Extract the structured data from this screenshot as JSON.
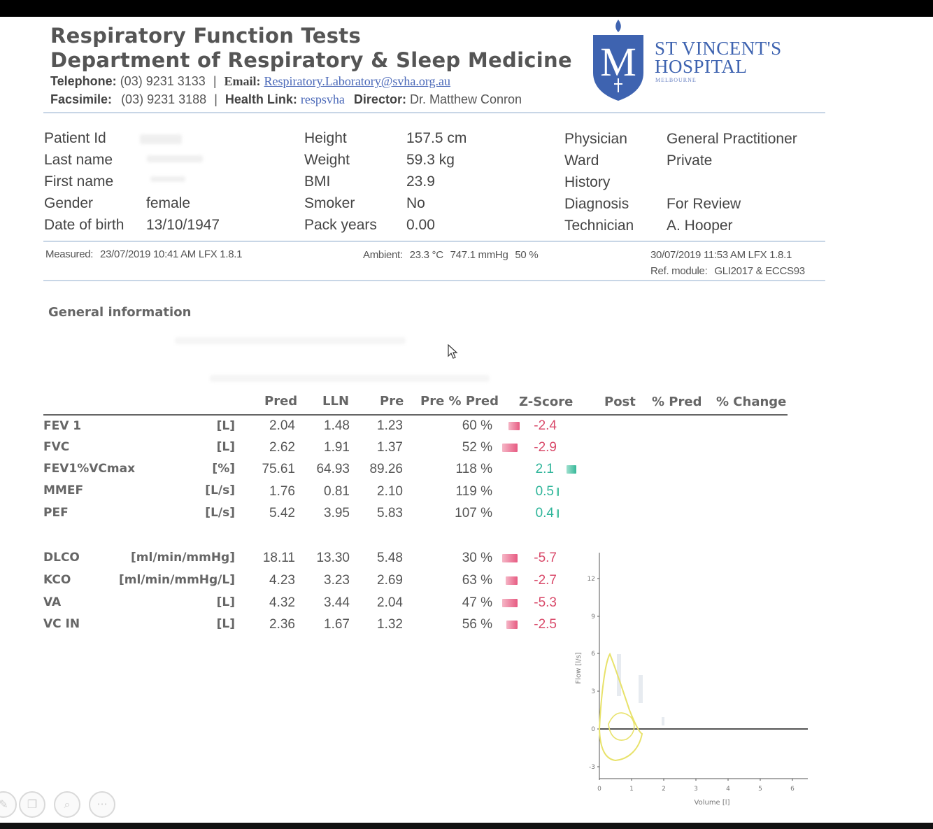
{
  "header": {
    "title_line1": "Respiratory Function Tests",
    "title_line2": "Department of Respiratory & Sleep Medicine",
    "telephone_label": "Telephone:",
    "telephone": "(03) 9231 3133",
    "email_label": "Email:",
    "email": "Respiratory.Laboratory@svha.org.au",
    "facsimile_label": "Facsimile:",
    "facsimile": "(03) 9231 3188",
    "health_link_label": "Health Link:",
    "health_link": "respsvha",
    "director_label": "Director:",
    "director": "Dr. Matthew Conron",
    "separator": "|",
    "hospital_line1": "ST VINCENT'S",
    "hospital_line2": "HOSPITAL",
    "hospital_city": "MELBOURNE",
    "logo_letter": "M"
  },
  "patient": {
    "col1": [
      {
        "label": "Patient Id",
        "value": ""
      },
      {
        "label": "Last name",
        "value": ""
      },
      {
        "label": "First name",
        "value": ""
      },
      {
        "label": "Gender",
        "value": "female"
      },
      {
        "label": "Date of birth",
        "value": "13/10/1947"
      }
    ],
    "col2": [
      {
        "label": "Height",
        "value": "157.5 cm"
      },
      {
        "label": "Weight",
        "value": "59.3 kg"
      },
      {
        "label": "BMI",
        "value": "23.9"
      },
      {
        "label": "Smoker",
        "value": "No"
      },
      {
        "label": "Pack years",
        "value": "0.00"
      }
    ],
    "col3": [
      {
        "label": "Physician",
        "value": "General Practitioner"
      },
      {
        "label": "Ward",
        "value": "Private"
      },
      {
        "label": "History",
        "value": ""
      },
      {
        "label": "Diagnosis",
        "value": "For Review"
      },
      {
        "label": "Technician",
        "value": "A. Hooper"
      }
    ]
  },
  "measurement": {
    "measured_label": "Measured:",
    "measured": "23/07/2019 10:41 AM LFX 1.8.1",
    "ambient_label": "Ambient:",
    "temperature": "23.3 °C",
    "pressure": "747.1 mmHg",
    "humidity": "50 %",
    "report_date": "30/07/2019 11:53 AM   LFX 1.8.1",
    "ref_module_label": "Ref. module:",
    "ref_module": "GLI2017 & ECCS93"
  },
  "general_information_title": "General information",
  "table": {
    "headers": [
      "Pred",
      "LLN",
      "Pre",
      "Pre % Pred",
      "Z-Score",
      "Post",
      "% Pred",
      "% Change"
    ],
    "rows": [
      {
        "name": "FEV 1",
        "unit": "[L]",
        "pred": "2.04",
        "lln": "1.48",
        "pre": "1.23",
        "pct": "60 %",
        "z": "-2.4"
      },
      {
        "name": "FVC",
        "unit": "[L]",
        "pred": "2.62",
        "lln": "1.91",
        "pre": "1.37",
        "pct": "52 %",
        "z": "-2.9"
      },
      {
        "name": "FEV1%VCmax",
        "unit": "[%]",
        "pred": "75.61",
        "lln": "64.93",
        "pre": "89.26",
        "pct": "118 %",
        "z": "2.1"
      },
      {
        "name": "MMEF",
        "unit": "[L/s]",
        "pred": "1.76",
        "lln": "0.81",
        "pre": "2.10",
        "pct": "119 %",
        "z": "0.5"
      },
      {
        "name": "PEF",
        "unit": "[L/s]",
        "pred": "5.42",
        "lln": "3.95",
        "pre": "5.83",
        "pct": "107 %",
        "z": "0.4"
      },
      {
        "name": "DLCO",
        "unit": "[ml/min/mmHg]",
        "pred": "18.11",
        "lln": "13.30",
        "pre": "5.48",
        "pct": "30 %",
        "z": "-5.7"
      },
      {
        "name": "KCO",
        "unit": "[ml/min/mmHg/L]",
        "pred": "4.23",
        "lln": "3.23",
        "pre": "2.69",
        "pct": "63 %",
        "z": "-2.7"
      },
      {
        "name": "VA",
        "unit": "[L]",
        "pred": "4.32",
        "lln": "3.44",
        "pre": "2.04",
        "pct": "47 %",
        "z": "-5.3"
      },
      {
        "name": "VC IN",
        "unit": "[L]",
        "pred": "2.36",
        "lln": "1.67",
        "pre": "1.32",
        "pct": "56 %",
        "z": "-2.5"
      }
    ]
  },
  "chart": {
    "x_label": "Volume [l]",
    "y_label": "Flow [l/s]",
    "x_ticks": [
      "0",
      "1",
      "2",
      "3",
      "4",
      "5",
      "6"
    ],
    "y_ticks": [
      "12",
      "9",
      "6",
      "3",
      "0",
      "-3"
    ]
  },
  "colors": {
    "accent": "#3e63b0",
    "negative": "#d94a6a",
    "positive": "#2fb59a",
    "loop": "#e8e26a"
  },
  "controls": [
    "edit-icon",
    "copy-icon",
    "zoom-icon",
    "more-icon"
  ]
}
